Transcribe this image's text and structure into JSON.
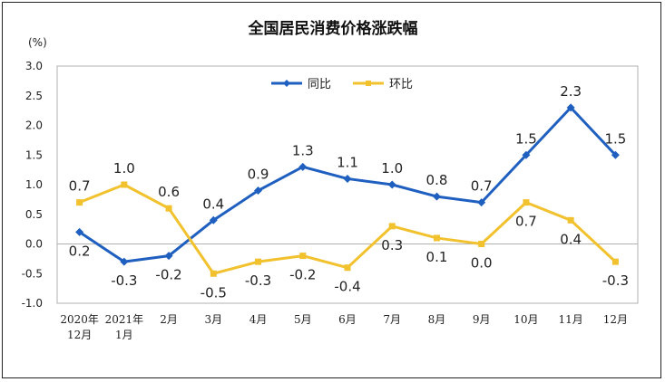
{
  "colors": {
    "yoy": "#1f5fbf",
    "mom": "#f2c12e"
  },
  "chart_data": {
    "type": "line",
    "title": "全国居民消费价格涨跌幅",
    "unit": "(%)",
    "categories": [
      [
        "2020年",
        "12月"
      ],
      [
        "2021年",
        "1月"
      ],
      [
        "2月"
      ],
      [
        "3月"
      ],
      [
        "4月"
      ],
      [
        "5月"
      ],
      [
        "6月"
      ],
      [
        "7月"
      ],
      [
        "8月"
      ],
      [
        "9月"
      ],
      [
        "10月"
      ],
      [
        "11月"
      ],
      [
        "12月"
      ]
    ],
    "yticks": [
      "3.0",
      "2.5",
      "2.0",
      "1.5",
      "1.0",
      "0.5",
      "0.0",
      "-0.5",
      "-1.0"
    ],
    "ylim": [
      -1.0,
      3.0
    ],
    "legend_position": "top-center",
    "series": [
      {
        "name": "同比",
        "color": "#1f5fbf",
        "marker": "diamond",
        "values": [
          0.2,
          -0.3,
          -0.2,
          0.4,
          0.9,
          1.3,
          1.1,
          1.0,
          0.8,
          0.7,
          1.5,
          2.3,
          1.5
        ],
        "labels": [
          "0.2",
          "-0.3",
          "-0.2",
          "0.4",
          "0.9",
          "1.3",
          "1.1",
          "1.0",
          "0.8",
          "0.7",
          "1.5",
          "2.3",
          "1.5"
        ],
        "label_pos": [
          "below",
          "below",
          "below",
          "above",
          "above",
          "above",
          "above",
          "above",
          "above",
          "above",
          "above",
          "above",
          "above"
        ]
      },
      {
        "name": "环比",
        "color": "#f2c12e",
        "marker": "square",
        "values": [
          0.7,
          1.0,
          0.6,
          -0.5,
          -0.3,
          -0.2,
          -0.4,
          0.3,
          0.1,
          0.0,
          0.7,
          0.4,
          -0.3
        ],
        "labels": [
          "0.7",
          "1.0",
          "0.6",
          "-0.5",
          "-0.3",
          "-0.2",
          "-0.4",
          "0.3",
          "0.1",
          "0.0",
          "0.7",
          "0.4",
          "-0.3"
        ],
        "label_pos": [
          "above",
          "above",
          "above",
          "below",
          "below",
          "below",
          "below",
          "below",
          "below",
          "below",
          "below",
          "below",
          "below"
        ]
      }
    ]
  }
}
